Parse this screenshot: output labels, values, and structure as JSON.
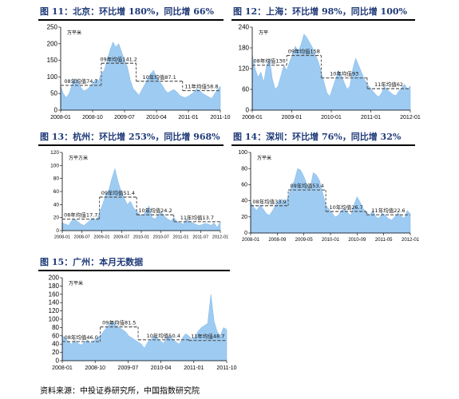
{
  "source_note": "资料来源：中投证券研究所，中国指数研究院",
  "chart_data": [
    {
      "id": "beijing",
      "type": "area",
      "title": "图 11：北京：环比增 180%，同比增 66%",
      "unit_label": "万平米",
      "ylim": [
        0,
        250
      ],
      "yticks": [
        "0",
        "50",
        "100",
        "150",
        "200",
        "250"
      ],
      "xticks": [
        "2008-01",
        "2008-10",
        "2009-07",
        "2010-04",
        "2011-01",
        "2011-10"
      ],
      "values": [
        72,
        48,
        38,
        52,
        80,
        95,
        88,
        68,
        58,
        62,
        70,
        82,
        92,
        88,
        110,
        120,
        150,
        180,
        205,
        190,
        200,
        175,
        150,
        130,
        90,
        65,
        55,
        45,
        62,
        78,
        95,
        110,
        120,
        100,
        88,
        75,
        60,
        52,
        58,
        62,
        55,
        45,
        40,
        38,
        42,
        48,
        55,
        65,
        58,
        50,
        45,
        40,
        35,
        48,
        62,
        72
      ],
      "averages": [
        {
          "label": "08年均值74.7",
          "value": 74.7,
          "from": 0,
          "to": 14
        },
        {
          "label": "09年均值141.2",
          "value": 141.2,
          "from": 14,
          "to": 26
        },
        {
          "label": "10年均值87.1",
          "value": 87.1,
          "from": 26,
          "to": 42
        },
        {
          "label": "11年均值58.8",
          "value": 58.8,
          "from": 42,
          "to": 55
        }
      ]
    },
    {
      "id": "shanghai",
      "type": "area",
      "title": "图 12：上海：环比增 98%，同比增 100%",
      "unit_label": "万平",
      "ylim": [
        0,
        240
      ],
      "yticks": [
        "0",
        "60",
        "120",
        "180",
        "240"
      ],
      "xticks": [
        "2008-01",
        "2009-01",
        "2010-01",
        "2011-01",
        "2012-01"
      ],
      "values": [
        160,
        120,
        95,
        110,
        80,
        130,
        150,
        90,
        60,
        70,
        100,
        130,
        115,
        140,
        160,
        185,
        170,
        190,
        220,
        210,
        195,
        180,
        160,
        140,
        110,
        80,
        50,
        40,
        65,
        90,
        115,
        100,
        80,
        60,
        70,
        120,
        150,
        130,
        110,
        90,
        75,
        65,
        55,
        45,
        38,
        50,
        68,
        60,
        52,
        45,
        42,
        55,
        65,
        75,
        60,
        70
      ],
      "averages": [
        {
          "label": "08年均值130",
          "value": 130,
          "from": 0,
          "to": 12
        },
        {
          "label": "09年均值158",
          "value": 158,
          "from": 12,
          "to": 24
        },
        {
          "label": "10年均值93",
          "value": 93,
          "from": 24,
          "to": 40
        },
        {
          "label": "11年均值62",
          "value": 62,
          "from": 40,
          "to": 55
        }
      ]
    },
    {
      "id": "hangzhou",
      "type": "area",
      "title": "图 13：杭州：环比增 253%，同比增 968%",
      "unit_label": "万平方米",
      "ylim": [
        0,
        120
      ],
      "yticks": [
        "0",
        "20",
        "40",
        "60",
        "80",
        "100",
        "120"
      ],
      "xticks": [
        "2008-01",
        "2008-07",
        "2009-01",
        "2009-07",
        "2010-01",
        "2010-07",
        "2011-01",
        "2011-07",
        "2012-01"
      ],
      "values": [
        12,
        10,
        8,
        15,
        18,
        14,
        10,
        8,
        12,
        16,
        20,
        15,
        28,
        40,
        55,
        62,
        80,
        95,
        75,
        60,
        50,
        40,
        45,
        35,
        30,
        25,
        22,
        30,
        38,
        20,
        18,
        25,
        28,
        22,
        18,
        15,
        20,
        14,
        12,
        10,
        18,
        14,
        12,
        10,
        8,
        9,
        11,
        10,
        8,
        12,
        5,
        14
      ],
      "averages": [
        {
          "label": "08年均值17.7",
          "value": 17.7,
          "from": 0,
          "to": 12
        },
        {
          "label": "09年均值51.4",
          "value": 51.4,
          "from": 12,
          "to": 24
        },
        {
          "label": "10年均值24.2",
          "value": 24.2,
          "from": 24,
          "to": 36
        },
        {
          "label": "11年均值13.7",
          "value": 13.7,
          "from": 36,
          "to": 51
        }
      ]
    },
    {
      "id": "shenzhen",
      "type": "area",
      "title": "图 14：深圳：环比增 76%，同比增 32%",
      "unit_label": "万平米",
      "ylim": [
        0,
        100
      ],
      "yticks": [
        "0",
        "20",
        "40",
        "60",
        "80",
        "100"
      ],
      "xticks": [
        "2008-01",
        "2008-09",
        "2009-05",
        "2010-01",
        "2010-09",
        "2011-05",
        "2012-01"
      ],
      "values": [
        38,
        32,
        28,
        35,
        30,
        24,
        22,
        28,
        35,
        40,
        42,
        38,
        45,
        58,
        65,
        80,
        78,
        70,
        60,
        55,
        75,
        72,
        65,
        50,
        35,
        30,
        25,
        20,
        22,
        28,
        30,
        25,
        22,
        35,
        45,
        38,
        30,
        26,
        22,
        28,
        20,
        18,
        25,
        22,
        18,
        16,
        20,
        25,
        22,
        18,
        28,
        24
      ],
      "averages": [
        {
          "label": "08年均值33.9",
          "value": 33.9,
          "from": 0,
          "to": 12
        },
        {
          "label": "09年均值53.4",
          "value": 53.4,
          "from": 12,
          "to": 24
        },
        {
          "label": "10年均值26.7",
          "value": 26.7,
          "from": 24,
          "to": 37
        },
        {
          "label": "11年均值22.6",
          "value": 22.6,
          "from": 37,
          "to": 51
        }
      ]
    },
    {
      "id": "guangzhou",
      "type": "area",
      "title": "图 15：广州：本月无数据",
      "unit_label": "万平米",
      "ylim": [
        0,
        200
      ],
      "yticks": [
        "0",
        "20",
        "40",
        "60",
        "80",
        "100",
        "120",
        "140",
        "160",
        "180",
        "200"
      ],
      "xticks": [
        "2008-01",
        "2008-10",
        "2009-07",
        "2010-04",
        "2011-01",
        "2011-10"
      ],
      "values": [
        60,
        55,
        45,
        40,
        50,
        42,
        38,
        45,
        50,
        42,
        48,
        55,
        60,
        70,
        80,
        90,
        95,
        85,
        80,
        75,
        70,
        60,
        55,
        50,
        45,
        40,
        30,
        45,
        50,
        60,
        55,
        48,
        42,
        55,
        60,
        52,
        45,
        40,
        55,
        65,
        60,
        50,
        58,
        72,
        80,
        85,
        90,
        160,
        95,
        70,
        60,
        80,
        75
      ],
      "averages": [
        {
          "label": "08年均值46.0",
          "value": 46.0,
          "from": 0,
          "to": 12
        },
        {
          "label": "09年均值81.5",
          "value": 81.5,
          "from": 12,
          "to": 24
        },
        {
          "label": "10年均值50.4",
          "value": 50.4,
          "from": 24,
          "to": 40
        },
        {
          "label": "11年均值48.7",
          "value": 48.7,
          "from": 40,
          "to": 52
        }
      ]
    }
  ]
}
